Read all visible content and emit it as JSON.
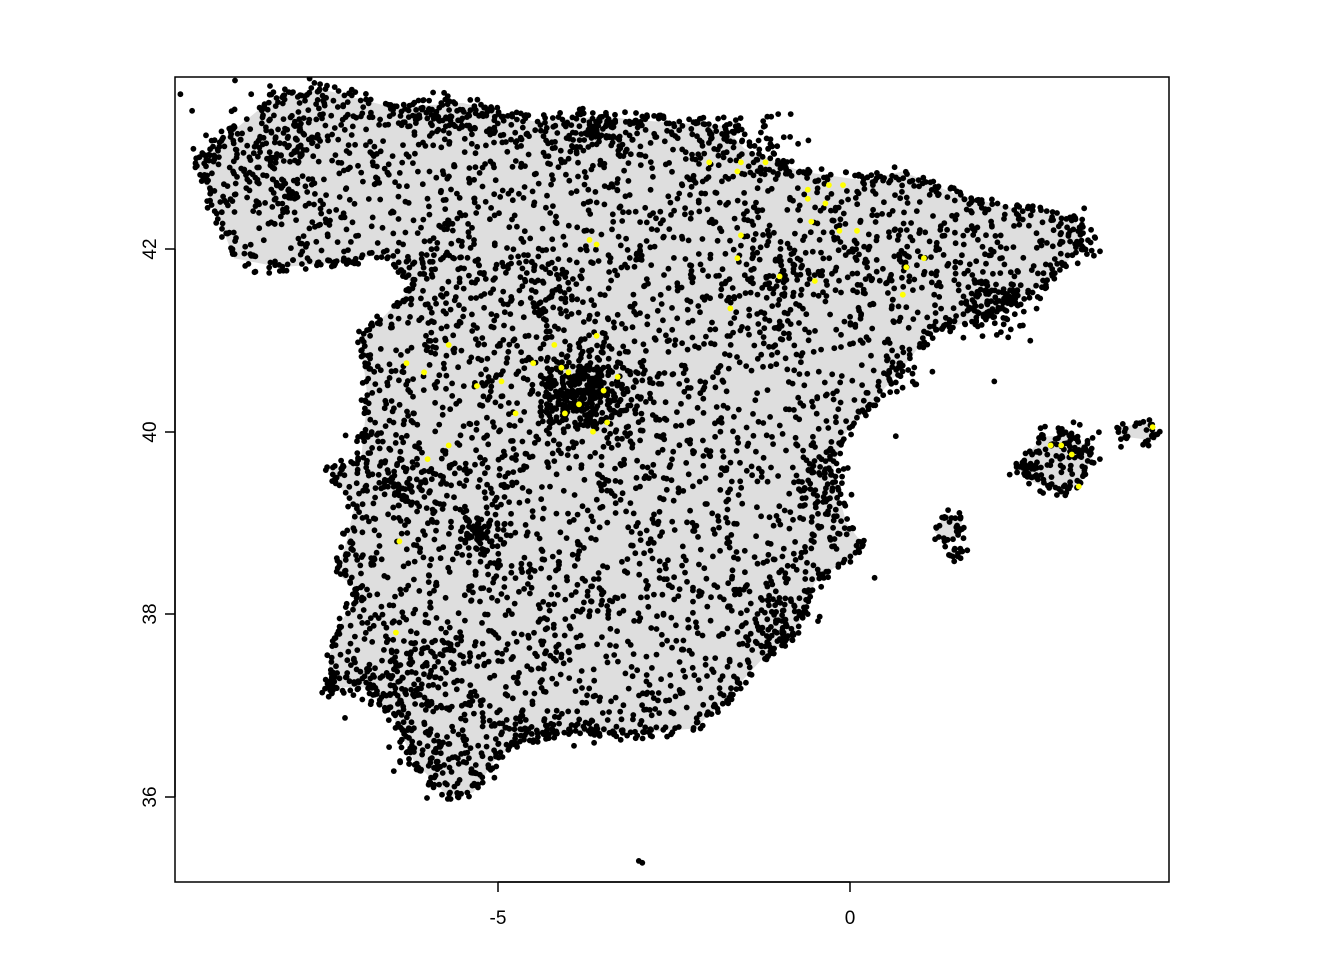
{
  "colors": {
    "background": "#ffffff",
    "land": "#dedede",
    "points_primary": "#000000",
    "points_highlight": "#ffff00",
    "frame": "#000000"
  },
  "chart_data": {
    "type": "scatter",
    "title": "",
    "xlabel": "",
    "ylabel": "",
    "xlim": [
      -9.6,
      4.55
    ],
    "ylim": [
      35.1,
      43.95
    ],
    "x_ticks": [
      {
        "value": -5,
        "label": "-5"
      },
      {
        "value": 0,
        "label": "0"
      }
    ],
    "y_ticks": [
      {
        "value": 36,
        "label": "36"
      },
      {
        "value": 38,
        "label": "38"
      },
      {
        "value": 40,
        "label": "40"
      },
      {
        "value": 42,
        "label": "42"
      }
    ],
    "grid": false,
    "legend": "none",
    "background_layer": {
      "description_kind": "raster land mask",
      "regions": [
        {
          "name": "mainland",
          "outline": [
            [
              -9.3,
              42.95
            ],
            [
              -8.2,
              43.65
            ],
            [
              -7.5,
              43.75
            ],
            [
              -6.5,
              43.55
            ],
            [
              -5.5,
              43.6
            ],
            [
              -4.5,
              43.4
            ],
            [
              -3.5,
              43.45
            ],
            [
              -2.8,
              43.4
            ],
            [
              -1.8,
              43.35
            ],
            [
              -1.5,
              43.1
            ],
            [
              -0.7,
              42.85
            ],
            [
              0.2,
              42.75
            ],
            [
              0.75,
              42.85
            ],
            [
              1.5,
              42.6
            ],
            [
              2.3,
              42.45
            ],
            [
              3.2,
              42.35
            ],
            [
              3.3,
              42.05
            ],
            [
              2.9,
              41.7
            ],
            [
              2.2,
              41.35
            ],
            [
              1.1,
              41.05
            ],
            [
              0.8,
              40.75
            ],
            [
              0.35,
              40.35
            ],
            [
              -0.1,
              39.95
            ],
            [
              -0.25,
              39.55
            ],
            [
              -0.05,
              39.0
            ],
            [
              0.2,
              38.75
            ],
            [
              -0.5,
              38.35
            ],
            [
              -0.8,
              37.75
            ],
            [
              -1.2,
              37.55
            ],
            [
              -1.8,
              37.05
            ],
            [
              -2.2,
              36.75
            ],
            [
              -3.1,
              36.7
            ],
            [
              -4.4,
              36.7
            ],
            [
              -5.0,
              36.45
            ],
            [
              -5.35,
              36.05
            ],
            [
              -5.7,
              36.0
            ],
            [
              -6.2,
              36.4
            ],
            [
              -6.5,
              36.9
            ],
            [
              -6.9,
              37.2
            ],
            [
              -7.4,
              37.2
            ],
            [
              -7.4,
              37.55
            ],
            [
              -7.2,
              37.95
            ],
            [
              -6.95,
              38.25
            ],
            [
              -7.3,
              38.45
            ],
            [
              -7.15,
              38.8
            ],
            [
              -7.05,
              39.15
            ],
            [
              -7.4,
              39.6
            ],
            [
              -6.95,
              39.65
            ],
            [
              -6.9,
              40.05
            ],
            [
              -6.85,
              40.35
            ],
            [
              -6.95,
              41.0
            ],
            [
              -6.2,
              41.6
            ],
            [
              -6.6,
              41.95
            ],
            [
              -7.3,
              41.85
            ],
            [
              -8.1,
              41.8
            ],
            [
              -8.75,
              41.9
            ],
            [
              -8.9,
              42.2
            ],
            [
              -9.1,
              42.6
            ]
          ]
        },
        {
          "name": "mallorca",
          "outline": [
            [
              2.35,
              39.6
            ],
            [
              2.75,
              39.95
            ],
            [
              3.2,
              39.95
            ],
            [
              3.45,
              39.75
            ],
            [
              3.25,
              39.4
            ],
            [
              2.95,
              39.35
            ],
            [
              2.6,
              39.45
            ]
          ]
        },
        {
          "name": "menorca",
          "outline": [
            [
              3.8,
              40.05
            ],
            [
              4.3,
              40.1
            ],
            [
              4.35,
              39.9
            ],
            [
              3.85,
              39.95
            ]
          ]
        },
        {
          "name": "ibiza",
          "outline": [
            [
              1.2,
              38.9
            ],
            [
              1.35,
              39.1
            ],
            [
              1.6,
              39.05
            ],
            [
              1.55,
              38.85
            ],
            [
              1.35,
              38.82
            ]
          ]
        },
        {
          "name": "formentera",
          "outline": [
            [
              1.38,
              38.68
            ],
            [
              1.55,
              38.72
            ],
            [
              1.6,
              38.66
            ],
            [
              1.42,
              38.63
            ]
          ]
        }
      ]
    },
    "series": [
      {
        "color": "#000000",
        "marker": "filled-circle",
        "point_count_estimate": 5000,
        "clusters": [
          {
            "center": [
              -3.75,
              40.5
            ],
            "spread": [
              0.35,
              0.25
            ],
            "count": 260
          },
          {
            "center": [
              -4.0,
              40.35
            ],
            "spread": [
              0.25,
              0.15
            ],
            "count": 80
          },
          {
            "center": [
              2.1,
              41.45
            ],
            "spread": [
              0.3,
              0.2
            ],
            "count": 110
          },
          {
            "center": [
              -6.0,
              37.3
            ],
            "spread": [
              0.35,
              0.25
            ],
            "count": 100
          },
          {
            "center": [
              -5.3,
              38.85
            ],
            "spread": [
              0.15,
              0.15
            ],
            "count": 60
          },
          {
            "center": [
              -6.35,
              39.5
            ],
            "spread": [
              0.35,
              0.3
            ],
            "count": 90
          },
          {
            "center": [
              -8.2,
              43.0
            ],
            "spread": [
              0.45,
              0.35
            ],
            "count": 140
          },
          {
            "center": [
              -5.7,
              43.4
            ],
            "spread": [
              0.35,
              0.12
            ],
            "count": 70
          },
          {
            "center": [
              -3.6,
              43.2
            ],
            "spread": [
              0.5,
              0.15
            ],
            "count": 90
          },
          {
            "center": [
              -1.5,
              43.1
            ],
            "spread": [
              0.5,
              0.2
            ],
            "count": 80
          },
          {
            "center": [
              -0.9,
              41.65
            ],
            "spread": [
              0.3,
              0.2
            ],
            "count": 60
          },
          {
            "center": [
              -0.4,
              39.45
            ],
            "spread": [
              0.15,
              0.25
            ],
            "count": 60
          },
          {
            "center": [
              -1.1,
              38.05
            ],
            "spread": [
              0.3,
              0.3
            ],
            "count": 80
          },
          {
            "center": [
              -5.9,
              36.5
            ],
            "spread": [
              0.3,
              0.2
            ],
            "count": 70
          },
          {
            "center": [
              -4.6,
              36.75
            ],
            "spread": [
              0.35,
              0.1
            ],
            "count": 50
          },
          {
            "center": [
              -7.0,
              37.25
            ],
            "spread": [
              0.3,
              0.08
            ],
            "count": 40
          },
          {
            "center": [
              -4.5,
              41.65
            ],
            "spread": [
              0.3,
              0.25
            ],
            "count": 50
          },
          {
            "center": [
              -5.7,
              41.8
            ],
            "spread": [
              0.3,
              0.3
            ],
            "count": 50
          },
          {
            "center": [
              0.3,
              41.9
            ],
            "spread": [
              0.5,
              0.3
            ],
            "count": 60
          },
          {
            "center": [
              3.05,
              39.8
            ],
            "spread": [
              0.2,
              0.12
            ],
            "count": 40
          },
          {
            "center": [
              2.6,
              39.6
            ],
            "spread": [
              0.15,
              0.05
            ],
            "count": 15
          },
          {
            "center": [
              3.3,
              42.1
            ],
            "spread": [
              0.15,
              0.15
            ],
            "count": 25
          },
          {
            "center": [
              0.7,
              40.65
            ],
            "spread": [
              0.15,
              0.1
            ],
            "count": 20
          }
        ],
        "isolated_points": [
          [
            -3.0,
            35.3
          ],
          [
            -2.95,
            35.28
          ],
          [
            2.05,
            40.55
          ],
          [
            0.35,
            38.4
          ],
          [
            0.65,
            39.95
          ],
          [
            4.4,
            40.0
          ],
          [
            3.9,
            40.0
          ],
          [
            3.55,
            39.7
          ]
        ]
      },
      {
        "color": "#ffff00",
        "marker": "filled-circle",
        "points": [
          [
            -0.6,
            42.65
          ],
          [
            -0.3,
            42.7
          ],
          [
            -0.1,
            42.7
          ],
          [
            -1.6,
            42.85
          ],
          [
            -1.55,
            42.95
          ],
          [
            -1.2,
            42.95
          ],
          [
            -2.0,
            42.95
          ],
          [
            -0.6,
            42.55
          ],
          [
            -0.35,
            42.5
          ],
          [
            -0.55,
            42.3
          ],
          [
            -0.15,
            42.2
          ],
          [
            0.1,
            42.2
          ],
          [
            -1.55,
            42.15
          ],
          [
            -3.7,
            42.1
          ],
          [
            -3.6,
            42.05
          ],
          [
            -1.6,
            41.9
          ],
          [
            -1.0,
            41.7
          ],
          [
            0.8,
            41.8
          ],
          [
            1.05,
            41.9
          ],
          [
            0.75,
            41.5
          ],
          [
            -1.7,
            41.35
          ],
          [
            -0.5,
            41.65
          ],
          [
            -4.2,
            40.95
          ],
          [
            -3.6,
            41.05
          ],
          [
            -5.7,
            40.95
          ],
          [
            -4.5,
            40.75
          ],
          [
            -4.1,
            40.7
          ],
          [
            -4.0,
            40.65
          ],
          [
            -3.3,
            40.6
          ],
          [
            -3.5,
            40.45
          ],
          [
            -3.85,
            40.3
          ],
          [
            -4.05,
            40.2
          ],
          [
            -3.45,
            40.1
          ],
          [
            -3.65,
            40.0
          ],
          [
            -4.75,
            40.2
          ],
          [
            -5.3,
            40.5
          ],
          [
            -4.95,
            40.55
          ],
          [
            -6.05,
            40.65
          ],
          [
            -6.3,
            40.75
          ],
          [
            -5.7,
            39.85
          ],
          [
            -6.0,
            39.7
          ],
          [
            -6.4,
            38.8
          ],
          [
            -6.45,
            37.8
          ],
          [
            3.0,
            39.85
          ],
          [
            3.15,
            39.75
          ],
          [
            3.25,
            39.4
          ],
          [
            4.3,
            40.05
          ],
          [
            2.85,
            39.85
          ]
        ]
      }
    ]
  }
}
